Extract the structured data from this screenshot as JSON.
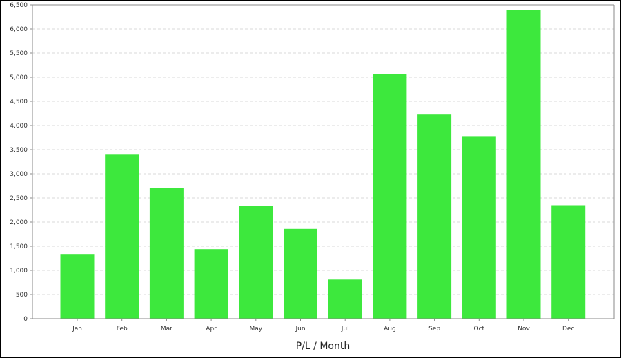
{
  "chart_data": {
    "type": "bar",
    "title": "",
    "xlabel": "P/L / Month",
    "ylabel": "",
    "categories": [
      "Jan",
      "Feb",
      "Mar",
      "Apr",
      "May",
      "Jun",
      "Jul",
      "Aug",
      "Sep",
      "Oct",
      "Nov",
      "Dec"
    ],
    "values": [
      1340,
      3410,
      2710,
      1440,
      2340,
      1860,
      810,
      5060,
      4240,
      3780,
      6390,
      2350
    ],
    "ylim": [
      0,
      6500
    ],
    "yticks": [
      0,
      500,
      1000,
      1500,
      2000,
      2500,
      3000,
      3500,
      4000,
      4500,
      5000,
      5500,
      6000,
      6500
    ],
    "ytick_labels": [
      "0",
      "500",
      "1,000",
      "1,500",
      "2,000",
      "2,500",
      "3,000",
      "3,500",
      "4,000",
      "4,500",
      "5,000",
      "5,500",
      "6,000",
      "6,500"
    ],
    "grid": true,
    "bar_color": "#3de83d",
    "grid_color": "#d9d9d9"
  }
}
